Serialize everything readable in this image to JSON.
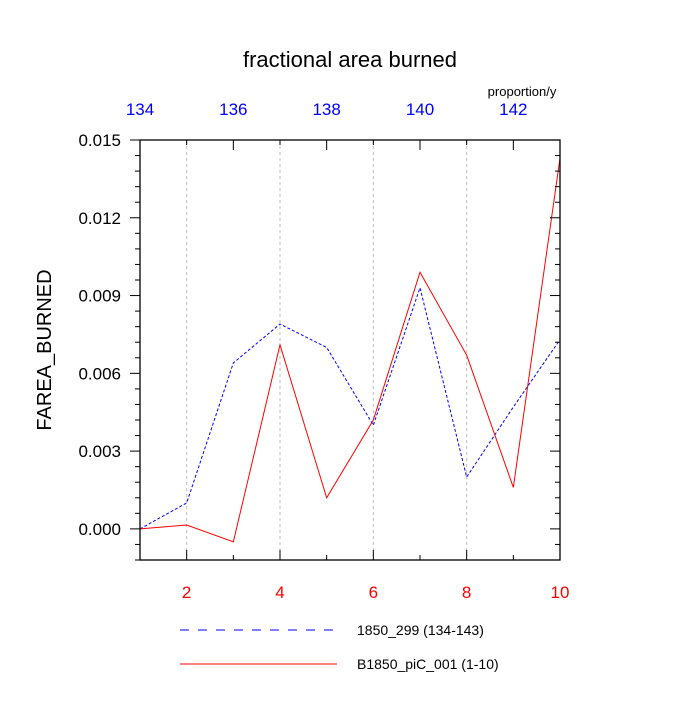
{
  "chart_data": {
    "type": "line",
    "title": "fractional area burned",
    "units": "proportion/y",
    "ylabel": "FAREA_BURNED",
    "ylim": [
      -0.0012,
      0.015
    ],
    "y_ticks": [
      0.0,
      0.003,
      0.006,
      0.009,
      0.012,
      0.015
    ],
    "y_tick_labels": [
      "0.000",
      "0.003",
      "0.006",
      "0.009",
      "0.012",
      "0.015"
    ],
    "bottom_axis": {
      "range": [
        1,
        10
      ],
      "ticks": [
        2,
        4,
        6,
        8,
        10
      ],
      "tick_labels": [
        "2",
        "4",
        "6",
        "8",
        "10"
      ],
      "color": "#ff0000"
    },
    "top_axis": {
      "range": [
        134,
        143
      ],
      "ticks": [
        134,
        136,
        138,
        140,
        142
      ],
      "tick_labels": [
        "134",
        "136",
        "138",
        "140",
        "142"
      ],
      "color": "#0000ff"
    },
    "grid": "vertical-dashed",
    "legend_position": "bottom",
    "series": [
      {
        "name": "1850_299 (134-143)",
        "axis": "top",
        "color": "#0000ff",
        "style": "dashed",
        "x": [
          134,
          135,
          136,
          137,
          138,
          139,
          140,
          141,
          142,
          143
        ],
        "values": [
          0.0,
          0.001,
          0.0064,
          0.0079,
          0.007,
          0.004,
          0.0093,
          0.002,
          0.0047,
          0.0073
        ]
      },
      {
        "name": "B1850_piC_001 (1-10)",
        "axis": "bottom",
        "color": "#ff0000",
        "style": "solid",
        "x": [
          1,
          2,
          3,
          4,
          5,
          6,
          7,
          8,
          9,
          10
        ],
        "values": [
          0.0,
          0.00015,
          -0.0005,
          0.0071,
          0.0012,
          0.0042,
          0.0099,
          0.0067,
          0.0016,
          0.0143
        ]
      }
    ]
  }
}
